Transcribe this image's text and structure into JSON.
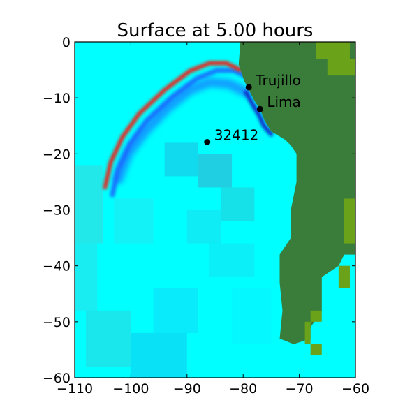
{
  "chart_data": {
    "type": "heatmap",
    "title": "Surface at 5.00 hours",
    "xlim": [
      -110,
      -60
    ],
    "ylim": [
      -60,
      0
    ],
    "xticks": [
      -110,
      -100,
      -90,
      -80,
      -70,
      -60
    ],
    "yticks": [
      0,
      -10,
      -20,
      -30,
      -40,
      -50,
      -60
    ],
    "xtick_labels": [
      "−110",
      "−100",
      "−90",
      "−80",
      "−70",
      "−60"
    ],
    "ytick_labels": [
      "0",
      "−10",
      "−20",
      "−30",
      "−40",
      "−50",
      "−60"
    ],
    "grid": false,
    "colors": {
      "ocean": "#00ffff",
      "land": "#3a7d3a",
      "land_highlands": "#6aa21a",
      "wave_crest": "#e8261c",
      "wave_trough": "#1f5fff",
      "deep_trough": "#0a2ac8"
    },
    "points": [
      {
        "label": "Trujillo",
        "x": -79.0,
        "y": -8.1
      },
      {
        "label": "Lima",
        "x": -77.0,
        "y": -12.0
      },
      {
        "label": "32412",
        "x": -86.4,
        "y": -17.9
      }
    ],
    "land_boundary": [
      [
        -80.5,
        0
      ],
      [
        -80.8,
        -4
      ],
      [
        -79.8,
        -7
      ],
      [
        -79.0,
        -8.5
      ],
      [
        -78.0,
        -10.5
      ],
      [
        -77.0,
        -12.0
      ],
      [
        -76.2,
        -14
      ],
      [
        -75.0,
        -16
      ],
      [
        -72.5,
        -17.5
      ],
      [
        -71.5,
        -18.5
      ],
      [
        -70.5,
        -20
      ],
      [
        -70.5,
        -25
      ],
      [
        -71.5,
        -30
      ],
      [
        -71.5,
        -35
      ],
      [
        -73.5,
        -38
      ],
      [
        -73.5,
        -43
      ],
      [
        -73.0,
        -48
      ],
      [
        -73.5,
        -53
      ],
      [
        -71.0,
        -54
      ],
      [
        -68.0,
        -53
      ],
      [
        -68.0,
        -51
      ],
      [
        -66.0,
        -48
      ],
      [
        -66.0,
        -42
      ],
      [
        -63.0,
        -40
      ],
      [
        -62.0,
        -38
      ],
      [
        -60,
        -38
      ],
      [
        -60,
        0
      ]
    ],
    "leading_wave_front": [
      [
        -80.5,
        -5.0
      ],
      [
        -83.0,
        -3.8
      ],
      [
        -86.0,
        -3.8
      ],
      [
        -89.5,
        -5.2
      ],
      [
        -94.0,
        -8.6
      ],
      [
        -98.5,
        -12.8
      ],
      [
        -101.5,
        -17.0
      ],
      [
        -103.6,
        -21.5
      ],
      [
        -104.6,
        -26.0
      ]
    ],
    "second_wave_front": [
      [
        -79.5,
        -9.0
      ],
      [
        -82.5,
        -7.5
      ],
      [
        -86.0,
        -7.2
      ],
      [
        -89.5,
        -8.6
      ],
      [
        -93.5,
        -11.8
      ],
      [
        -97.5,
        -16.0
      ],
      [
        -100.5,
        -20.0
      ],
      [
        -102.2,
        -24.5
      ]
    ]
  }
}
